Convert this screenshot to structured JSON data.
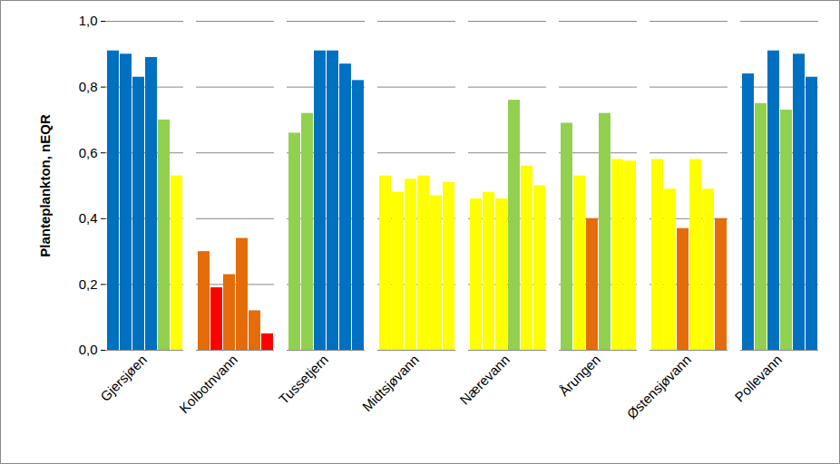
{
  "chart_data": {
    "type": "bar",
    "categories": [
      "Gjersjøen",
      "Kolbotnvann",
      "Tussetjern",
      "Midtsjøvann",
      "Nærevann",
      "Årungen",
      "Østensjøvann",
      "Pollevann"
    ],
    "values": [
      [
        0.91,
        0.9,
        0.83,
        0.89,
        0.7,
        0.53
      ],
      [
        0.3,
        0.19,
        0.23,
        0.34,
        0.12,
        0.05
      ],
      [
        0.66,
        0.72,
        0.91,
        0.91,
        0.87,
        0.82
      ],
      [
        0.53,
        0.48,
        0.52,
        0.53,
        0.47,
        0.51
      ],
      [
        0.46,
        0.48,
        0.46,
        0.76,
        0.56,
        0.5
      ],
      [
        0.69,
        0.53,
        0.4,
        0.72,
        0.58,
        0.575
      ],
      [
        0.58,
        0.49,
        0.37,
        0.58,
        0.49,
        0.4
      ],
      [
        0.84,
        0.75,
        0.91,
        0.73,
        0.9,
        0.83
      ]
    ],
    "colors": [
      [
        "#0070C0",
        "#0070C0",
        "#0070C0",
        "#0070C0",
        "#92D050",
        "#FFFF00"
      ],
      [
        "#E46C0A",
        "#FF0000",
        "#E46C0A",
        "#E46C0A",
        "#E46C0A",
        "#FF0000"
      ],
      [
        "#92D050",
        "#92D050",
        "#0070C0",
        "#0070C0",
        "#0070C0",
        "#0070C0"
      ],
      [
        "#FFFF00",
        "#FFFF00",
        "#FFFF00",
        "#FFFF00",
        "#FFFF00",
        "#FFFF00"
      ],
      [
        "#FFFF00",
        "#FFFF00",
        "#FFFF00",
        "#92D050",
        "#FFFF00",
        "#FFFF00"
      ],
      [
        "#92D050",
        "#FFFF00",
        "#E46C0A",
        "#92D050",
        "#FFFF00",
        "#FFFF00"
      ],
      [
        "#FFFF00",
        "#FFFF00",
        "#E46C0A",
        "#FFFF00",
        "#FFFF00",
        "#E46C0A"
      ],
      [
        "#0070C0",
        "#92D050",
        "#0070C0",
        "#92D050",
        "#0070C0",
        "#0070C0"
      ]
    ],
    "y_label": "Planteplankton, nEQR",
    "ylim": [
      0,
      1
    ],
    "yticks": [
      {
        "value": 0,
        "label": "0,0"
      },
      {
        "value": 0.2,
        "label": "0,2"
      },
      {
        "value": 0.4,
        "label": "0,4"
      },
      {
        "value": 0.6,
        "label": "0,6"
      },
      {
        "value": 0.8,
        "label": "0,8"
      },
      {
        "value": 1,
        "label": "1,0"
      }
    ],
    "grid": true
  }
}
